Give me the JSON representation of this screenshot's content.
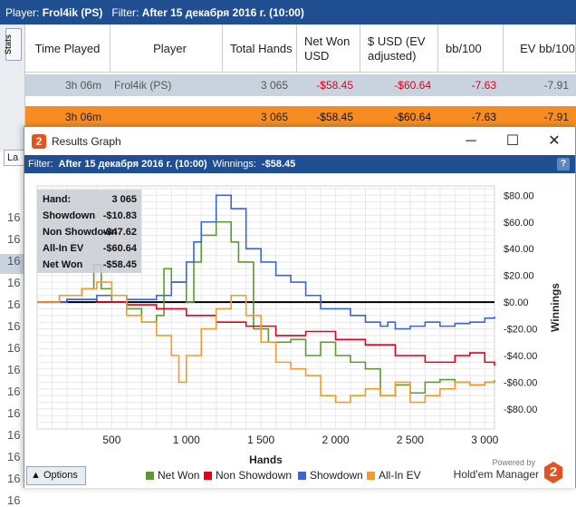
{
  "main": {
    "filter_label": "Player:",
    "player": "Frol4ik (PS)",
    "filter_prefix": "Filter:",
    "filter_value": "After 15 декабря 2016 г. (10:00)",
    "stats_tab": "Stats",
    "columns": [
      "Time Played",
      "Player",
      "Total Hands",
      "Net Won USD",
      "$ USD (EV adjusted)",
      "bb/100",
      "EV bb/100"
    ],
    "rows": [
      {
        "time": "3h 06m",
        "player": "Frol4ik (PS)",
        "hands": "3 065",
        "net": "-$58.45",
        "ev_usd": "-$60.64",
        "bb100": "-7.63",
        "ev_bb100": "-7.91"
      },
      {
        "time": "3h 06m",
        "player": "",
        "hands": "3 065",
        "net": "-$58.45",
        "ev_usd": "-$60.64",
        "bb100": "-7.63",
        "ev_bb100": "-7.91"
      }
    ],
    "side_label": "La",
    "side_numbers": [
      "16",
      "16",
      "16",
      "16",
      "16",
      "16",
      "16",
      "16",
      "16",
      "16",
      "16",
      "16",
      "16",
      "16"
    ]
  },
  "graph_window": {
    "title": "Results Graph",
    "filter_prefix": "Filter:",
    "filter_value": "After 15 декабря 2016 г. (10:00)",
    "winnings_label": "Winnings:",
    "winnings_value": "-$58.45",
    "info": [
      {
        "k": "Hand:",
        "v": "3 065"
      },
      {
        "k": "Showdown",
        "v": "-$10.83"
      },
      {
        "k": "Non Showdown",
        "v": "-$47.62"
      },
      {
        "k": "All-In EV",
        "v": "-$60.64"
      },
      {
        "k": "Net Won",
        "v": "-$58.45"
      }
    ],
    "options_label": "Options",
    "powered_by": "Powered by",
    "brand": "Hold'em Manager",
    "brand_logo": "2"
  },
  "chart_data": {
    "type": "line",
    "xlabel": "Hands",
    "ylabel": "Winnings",
    "xlim": [
      0,
      3065
    ],
    "ylim": [
      -95,
      87
    ],
    "x_ticks": [
      500,
      1000,
      1500,
      2000,
      2500,
      3000
    ],
    "x_tick_labels": [
      "500",
      "1 000",
      "1 500",
      "2 000",
      "2 500",
      "3 000"
    ],
    "y_ticks": [
      80,
      60,
      40,
      20,
      0,
      -20,
      -40,
      -60,
      -80
    ],
    "y_tick_labels": [
      "$80.00",
      "$60.00",
      "$40.00",
      "$20.00",
      "$0.00",
      "-$20.00",
      "-$40.00",
      "-$60.00",
      "-$80.00"
    ],
    "grid": true,
    "legend_position": "bottom",
    "series": [
      {
        "name": "Net Won",
        "color": "#5b9a2f",
        "x": [
          0,
          150,
          300,
          380,
          430,
          500,
          600,
          700,
          800,
          850,
          900,
          1000,
          1050,
          1100,
          1200,
          1300,
          1350,
          1450,
          1550,
          1700,
          1800,
          1900,
          2000,
          2100,
          2200,
          2300,
          2400,
          2500,
          2600,
          2700,
          2800,
          2900,
          3000,
          3065
        ],
        "y": [
          0,
          5,
          10,
          28,
          10,
          0,
          -5,
          -15,
          -10,
          25,
          15,
          0,
          30,
          50,
          60,
          45,
          30,
          -20,
          -30,
          -28,
          -40,
          -30,
          -40,
          -45,
          -50,
          -70,
          -62,
          -68,
          -60,
          -58,
          -60,
          -62,
          -60,
          -58.45
        ]
      },
      {
        "name": "Non Showdown",
        "color": "#e3001b",
        "x": [
          0,
          200,
          400,
          600,
          800,
          1000,
          1200,
          1400,
          1600,
          1800,
          2000,
          2200,
          2400,
          2600,
          2800,
          2900,
          3000,
          3065
        ],
        "y": [
          0,
          2,
          0,
          -2,
          -5,
          -10,
          -15,
          -18,
          -25,
          -22,
          -28,
          -32,
          -40,
          -45,
          -40,
          -38,
          -45,
          -47.62
        ]
      },
      {
        "name": "Showdown",
        "color": "#3766d8",
        "x": [
          0,
          200,
          400,
          600,
          800,
          900,
          1000,
          1050,
          1100,
          1200,
          1300,
          1400,
          1500,
          1600,
          1700,
          1800,
          1900,
          2000,
          2100,
          2200,
          2300,
          2350,
          2400,
          2500,
          2600,
          2700,
          2800,
          2900,
          3000,
          3065
        ],
        "y": [
          0,
          2,
          5,
          2,
          5,
          15,
          30,
          45,
          60,
          80,
          70,
          40,
          30,
          20,
          15,
          5,
          -5,
          -5,
          -10,
          -15,
          -18,
          -15,
          -20,
          -18,
          -15,
          -18,
          -16,
          -15,
          -12,
          -10.83
        ]
      },
      {
        "name": "All-In EV",
        "color": "#f39a2e",
        "x": [
          0,
          150,
          300,
          400,
          500,
          600,
          700,
          800,
          900,
          950,
          1000,
          1100,
          1200,
          1300,
          1400,
          1500,
          1600,
          1700,
          1800,
          1900,
          2000,
          2100,
          2200,
          2300,
          2400,
          2500,
          2600,
          2700,
          2800,
          2900,
          3000,
          3065
        ],
        "y": [
          0,
          5,
          10,
          15,
          5,
          -10,
          -15,
          -25,
          -40,
          -60,
          -40,
          -20,
          -5,
          5,
          -10,
          -30,
          -45,
          -50,
          -55,
          -70,
          -75,
          -70,
          -65,
          -70,
          -60,
          -75,
          -70,
          -65,
          -60,
          -62,
          -60,
          -60.64
        ]
      }
    ]
  }
}
